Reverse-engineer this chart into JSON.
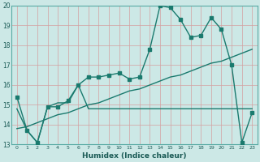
{
  "xlabel": "Humidex (Indice chaleur)",
  "bg_color": "#cce8e6",
  "grid_color_v": "#c8a0a0",
  "grid_color_h": "#c8a0a0",
  "line_color": "#1a7a6e",
  "xlim": [
    -0.5,
    23.5
  ],
  "ylim": [
    13,
    20
  ],
  "xticks": [
    0,
    1,
    2,
    3,
    4,
    5,
    6,
    7,
    8,
    9,
    10,
    11,
    12,
    13,
    14,
    15,
    16,
    17,
    18,
    19,
    20,
    21,
    22,
    23
  ],
  "yticks": [
    13,
    14,
    15,
    16,
    17,
    18,
    19,
    20
  ],
  "series1_x": [
    0,
    1,
    2,
    3,
    4,
    5,
    6,
    7,
    8,
    9,
    10,
    11,
    12,
    13,
    14,
    15,
    16,
    17,
    18,
    19,
    20,
    21,
    22,
    23
  ],
  "series1_y": [
    15.4,
    13.7,
    13.1,
    14.9,
    14.9,
    15.2,
    16.0,
    16.4,
    16.4,
    16.5,
    16.6,
    16.3,
    16.4,
    17.8,
    20.0,
    19.9,
    19.3,
    18.4,
    18.5,
    19.4,
    18.8,
    17.0,
    13.1,
    14.6
  ],
  "series2_x": [
    0,
    1,
    2,
    3,
    4,
    5,
    6,
    7,
    8,
    9,
    10,
    11,
    12,
    13,
    14,
    15,
    16,
    17,
    18,
    19,
    20,
    21,
    22,
    23
  ],
  "series2_y": [
    14.8,
    13.7,
    13.1,
    14.9,
    15.1,
    15.1,
    16.0,
    14.8,
    14.8,
    14.8,
    14.8,
    14.8,
    14.8,
    14.8,
    14.8,
    14.8,
    14.8,
    14.8,
    14.8,
    14.8,
    14.8,
    14.8,
    14.8,
    14.8
  ],
  "series3_x": [
    0,
    1,
    2,
    3,
    4,
    5,
    6,
    7,
    8,
    9,
    10,
    11,
    12,
    13,
    14,
    15,
    16,
    17,
    18,
    19,
    20,
    21,
    22,
    23
  ],
  "series3_y": [
    13.8,
    13.9,
    14.1,
    14.3,
    14.5,
    14.6,
    14.8,
    15.0,
    15.1,
    15.3,
    15.5,
    15.7,
    15.8,
    16.0,
    16.2,
    16.4,
    16.5,
    16.7,
    16.9,
    17.1,
    17.2,
    17.4,
    17.6,
    17.8
  ]
}
